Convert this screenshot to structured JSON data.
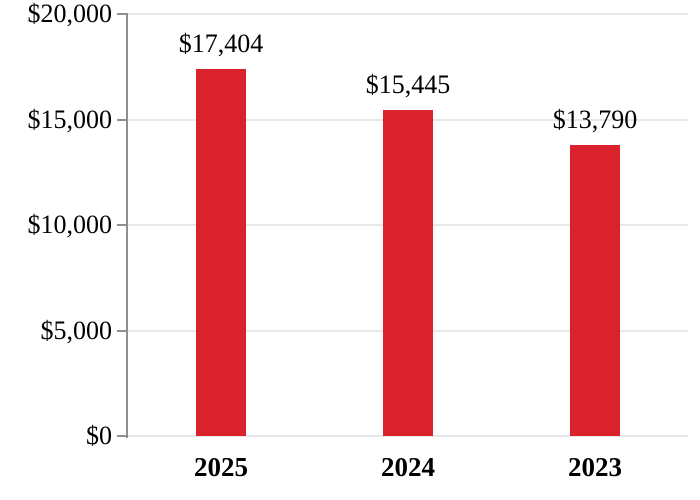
{
  "chart_data": {
    "type": "bar",
    "title": "",
    "categories": [
      "2025",
      "2024",
      "2023"
    ],
    "values": [
      17404,
      15445,
      13790
    ],
    "value_labels": [
      "$17,404",
      "$15,445",
      "$13,790"
    ],
    "ylim": [
      0,
      20000
    ],
    "yticks": [
      0,
      5000,
      10000,
      15000,
      20000
    ],
    "ytick_labels": [
      "$0",
      "$5,000",
      "$10,000",
      "$15,000",
      "$20,000"
    ],
    "grid": true,
    "legend": false,
    "bar_color": "#D9222B",
    "axis_color": "#8F8F8F",
    "gridline_color": "#E8E8E8",
    "text_color": "#000000",
    "background_color": "#FFFFFF"
  }
}
